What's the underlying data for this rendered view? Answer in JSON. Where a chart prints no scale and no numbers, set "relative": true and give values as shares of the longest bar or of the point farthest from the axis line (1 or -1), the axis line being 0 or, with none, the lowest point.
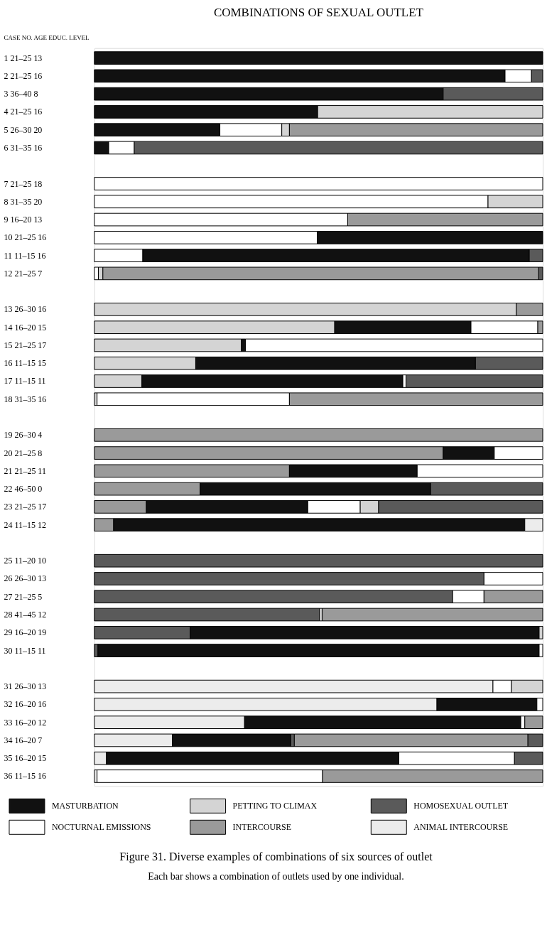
{
  "chart_data": {
    "type": "bar",
    "orientation": "horizontal",
    "relative": true,
    "stacked": true,
    "title": "COMBINATIONS OF SEXUAL OUTLET",
    "ylabel": "CASE NO.  AGE  EDUC. LEVEL",
    "legend": "bottom",
    "categories": [
      "1  21–25  13",
      "2  21–25  16",
      "3  36–40  8",
      "4  21–25  16",
      "5  26–30  20",
      "6  31–35  16",
      null,
      "7  21–25  18",
      "8  31–35  20",
      "9  16–20  13",
      "10  21–25  16",
      "11  11–15  16",
      "12  21–25  7",
      null,
      "13  26–30  16",
      "14  16–20  15",
      "15  21–25  17",
      "16  11–15  15",
      "17  11–15  11",
      "18  31–35  16",
      null,
      "19  26–30  4",
      "20  21–25  8",
      "21  21–25  11",
      "22  46–50  0",
      "23  21–25  17",
      "24  11–15  12",
      null,
      "25  11–20  10",
      "26  26–30  13",
      "27  21–25  5",
      "28  41–45  12",
      "29  16–20  19",
      "30  11–15  11",
      null,
      "31  26–30  13",
      "32  16–20  16",
      "33  16–20  12",
      "34  16–20  7",
      "35  16–20  15",
      "36  11–15  16"
    ],
    "series": [
      {
        "color": "#ececec",
        "values": [
          null,
          null,
          null,
          null,
          null,
          null,
          null,
          null,
          null,
          null,
          null,
          null,
          null,
          null,
          null,
          null,
          null,
          null,
          null,
          null,
          null,
          null,
          null,
          null,
          null,
          null,
          null,
          null,
          null,
          null,
          null,
          null,
          null,
          null,
          null,
          0.889,
          0.764,
          0.335,
          0.174,
          0.027,
          0.006
        ]
      },
      {
        "color": "#5a5a5a",
        "values": [
          null,
          null,
          null,
          null,
          null,
          null,
          null,
          null,
          null,
          null,
          null,
          null,
          null,
          null,
          null,
          null,
          null,
          null,
          null,
          null,
          null,
          null,
          null,
          null,
          null,
          null,
          null,
          null,
          null,
          0.869,
          0.799,
          0.502,
          0.214,
          0.008,
          null,
          null,
          null,
          null,
          null,
          null,
          null
        ]
      },
      {
        "color": "#9a9a9a",
        "values": [
          null,
          null,
          null,
          null,
          null,
          null,
          null,
          null,
          null,
          null,
          null,
          null,
          null,
          null,
          null,
          null,
          null,
          null,
          null,
          null,
          null,
          null,
          0.778,
          0.435,
          0.236,
          0.116,
          0.043,
          null,
          null,
          null,
          null,
          null,
          null,
          null,
          null,
          null,
          null,
          null,
          null,
          null,
          null
        ]
      },
      {
        "color": "#d4d4d4",
        "values": [
          null,
          null,
          null,
          null,
          null,
          null,
          null,
          null,
          null,
          null,
          null,
          null,
          null,
          null,
          null,
          0.536,
          0.328,
          0.226,
          0.106,
          0.006,
          null,
          null,
          null,
          null,
          null,
          null,
          null,
          null,
          null,
          null,
          null,
          null,
          null,
          null,
          null,
          null,
          null,
          null,
          null,
          null,
          null
        ]
      },
      {
        "color": "#ffffff",
        "values": [
          null,
          null,
          null,
          null,
          null,
          null,
          null,
          null,
          null,
          null,
          0.497,
          0.108,
          null,
          null,
          null,
          null,
          null,
          null,
          null,
          null,
          null,
          null,
          null,
          null,
          null,
          null,
          null,
          null,
          null,
          null,
          null,
          null,
          null,
          null,
          null,
          null,
          null,
          null,
          null,
          null,
          null
        ]
      },
      {
        "name": "MASTURBATION",
        "color": "#111111",
        "values": [
          1,
          0.916,
          0.778,
          0.498,
          0.28,
          0.032,
          null,
          null,
          null,
          null,
          0.503,
          0.862,
          null,
          null,
          null,
          0.304,
          0.009,
          0.624,
          0.582,
          null,
          null,
          null,
          0.114,
          0.285,
          0.514,
          0.36,
          0.917,
          null,
          null,
          null,
          null,
          null,
          0.778,
          0.984,
          null,
          null,
          0.223,
          0.616,
          0.264,
          0.652,
          null
        ]
      },
      {
        "name": "NOCTURNAL EMISSIONS",
        "color": "#ffffff",
        "values": [
          null,
          0.059,
          null,
          null,
          0.138,
          0.057,
          null,
          1,
          0.878,
          0.565,
          null,
          null,
          0.009,
          null,
          null,
          0.149,
          0.663,
          null,
          0.007,
          0.429,
          null,
          null,
          0.108,
          0.28,
          null,
          0.117,
          null,
          null,
          null,
          0.131,
          0.07,
          null,
          null,
          0.008,
          null,
          0.041,
          0.013,
          0.009,
          null,
          0.258,
          0.503
        ]
      },
      {
        "color": "#5a5a5a",
        "values": [
          null,
          null,
          null,
          null,
          null,
          null,
          null,
          null,
          null,
          null,
          null,
          null,
          null,
          null,
          null,
          null,
          null,
          null,
          null,
          null,
          null,
          null,
          null,
          null,
          null,
          null,
          null,
          null,
          null,
          null,
          null,
          null,
          null,
          null,
          null,
          null,
          null,
          null,
          0.008,
          null,
          null
        ]
      },
      {
        "name": "PETTING TO CLIMAX",
        "color": "#d4d4d4",
        "values": [
          null,
          null,
          null,
          0.502,
          0.017,
          null,
          null,
          null,
          0.122,
          null,
          null,
          null,
          0.01,
          null,
          0.941,
          null,
          null,
          null,
          null,
          null,
          null,
          null,
          null,
          null,
          null,
          0.041,
          null,
          null,
          null,
          null,
          null,
          0.006,
          0.008,
          null,
          null,
          0.07,
          null,
          null,
          null,
          null,
          null
        ]
      },
      {
        "name": "INTERCOURSE",
        "color": "#9a9a9a",
        "values": [
          null,
          null,
          null,
          null,
          0.565,
          null,
          null,
          null,
          null,
          0.435,
          null,
          null,
          0.972,
          null,
          0.059,
          0.011,
          null,
          null,
          null,
          0.565,
          null,
          1,
          null,
          null,
          null,
          null,
          null,
          null,
          null,
          null,
          0.131,
          0.492,
          null,
          null,
          null,
          null,
          null,
          0.04,
          0.521,
          null,
          0.491
        ]
      },
      {
        "name": "HOMOSEXUAL OUTLET",
        "color": "#5a5a5a",
        "values": [
          null,
          0.025,
          0.222,
          null,
          null,
          0.911,
          null,
          null,
          null,
          null,
          null,
          0.03,
          0.009,
          null,
          null,
          null,
          null,
          0.15,
          0.305,
          null,
          null,
          null,
          null,
          null,
          0.25,
          0.366,
          null,
          null,
          1,
          null,
          null,
          null,
          null,
          null,
          null,
          null,
          null,
          null,
          0.033,
          0.063,
          null
        ]
      },
      {
        "name": "ANIMAL INTERCOURSE",
        "color": "#ececec",
        "values": [
          null,
          null,
          null,
          null,
          null,
          null,
          null,
          null,
          null,
          null,
          null,
          null,
          null,
          null,
          null,
          null,
          null,
          null,
          null,
          null,
          null,
          null,
          null,
          null,
          null,
          null,
          0.04,
          null,
          null,
          null,
          null,
          null,
          null,
          null,
          null,
          null,
          null,
          null,
          null,
          null,
          null
        ]
      }
    ],
    "annotations": [
      "Figure 31. Diverse examples of combinations of six sources of outlet",
      "Each bar shows a combination of outlets used by one individual."
    ]
  }
}
